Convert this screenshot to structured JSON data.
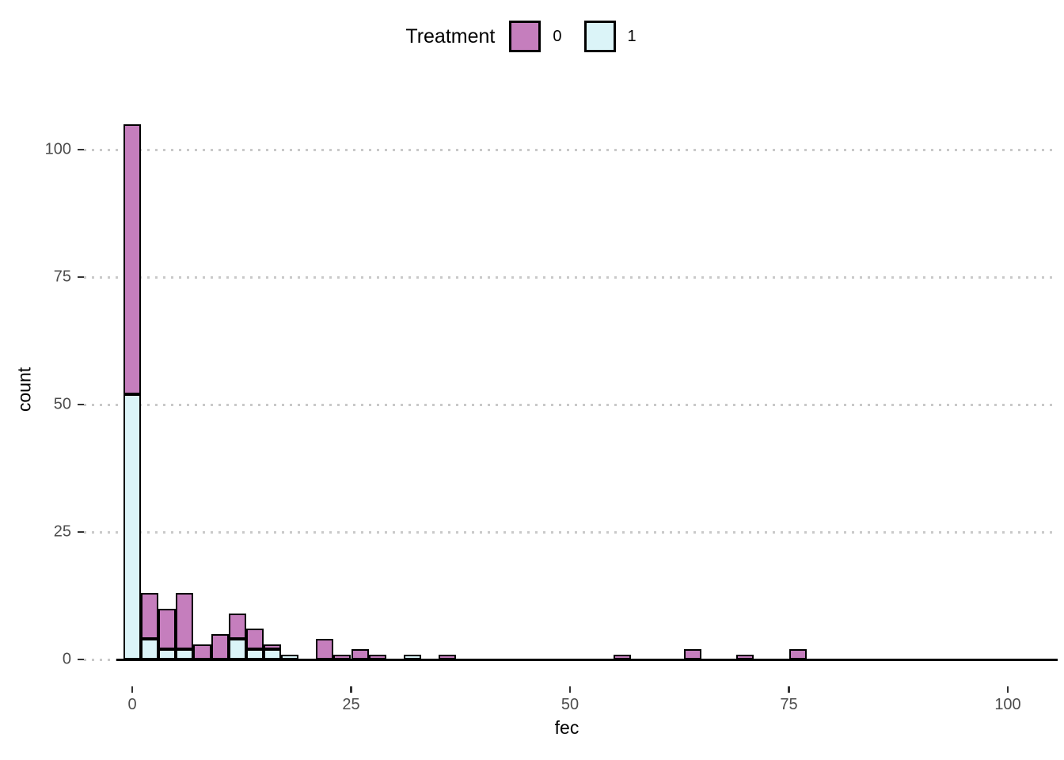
{
  "chart_data": {
    "type": "bar",
    "subtype": "stacked-histogram",
    "title": "",
    "xlabel": "fec",
    "ylabel": "count",
    "legend": {
      "title": "Treatment",
      "position": "top",
      "entries": [
        {
          "label": "0",
          "color": "#C57EBD"
        },
        {
          "label": "1",
          "color": "#DBF4F8"
        }
      ]
    },
    "binwidth": 2,
    "x_ticks": [
      0,
      25,
      50,
      75,
      100
    ],
    "y_ticks": [
      0,
      25,
      50,
      75,
      100
    ],
    "xlim": [
      -5.3,
      105.7
    ],
    "ylim": [
      -5.25,
      110.25
    ],
    "grid": "horizontal-dotted",
    "bins": [
      {
        "center": 0,
        "treatment0": 53,
        "treatment1": 52
      },
      {
        "center": 2,
        "treatment0": 9,
        "treatment1": 4
      },
      {
        "center": 4,
        "treatment0": 8,
        "treatment1": 2
      },
      {
        "center": 6,
        "treatment0": 11,
        "treatment1": 2
      },
      {
        "center": 8,
        "treatment0": 3,
        "treatment1": 0
      },
      {
        "center": 10,
        "treatment0": 5,
        "treatment1": 0
      },
      {
        "center": 12,
        "treatment0": 5,
        "treatment1": 4
      },
      {
        "center": 14,
        "treatment0": 4,
        "treatment1": 2
      },
      {
        "center": 16,
        "treatment0": 1,
        "treatment1": 2
      },
      {
        "center": 18,
        "treatment0": 0,
        "treatment1": 1
      },
      {
        "center": 22,
        "treatment0": 4,
        "treatment1": 0
      },
      {
        "center": 24,
        "treatment0": 1,
        "treatment1": 0
      },
      {
        "center": 26,
        "treatment0": 2,
        "treatment1": 0
      },
      {
        "center": 28,
        "treatment0": 1,
        "treatment1": 0
      },
      {
        "center": 32,
        "treatment0": 0,
        "treatment1": 1
      },
      {
        "center": 36,
        "treatment0": 1,
        "treatment1": 0
      },
      {
        "center": 56,
        "treatment0": 1,
        "treatment1": 0
      },
      {
        "center": 64,
        "treatment0": 2,
        "treatment1": 0
      },
      {
        "center": 70,
        "treatment0": 1,
        "treatment1": 0
      },
      {
        "center": 76,
        "treatment0": 2,
        "treatment1": 0
      }
    ],
    "colors": {
      "treatment0": "#C57EBD",
      "treatment1": "#DBF4F8",
      "bar_outline": "#000000",
      "gridline": "#C9C9C9",
      "tick_mark": "#333333",
      "tick_label": "#4D4D4D",
      "axis_title": "#000000",
      "background": "#FFFFFF"
    }
  }
}
